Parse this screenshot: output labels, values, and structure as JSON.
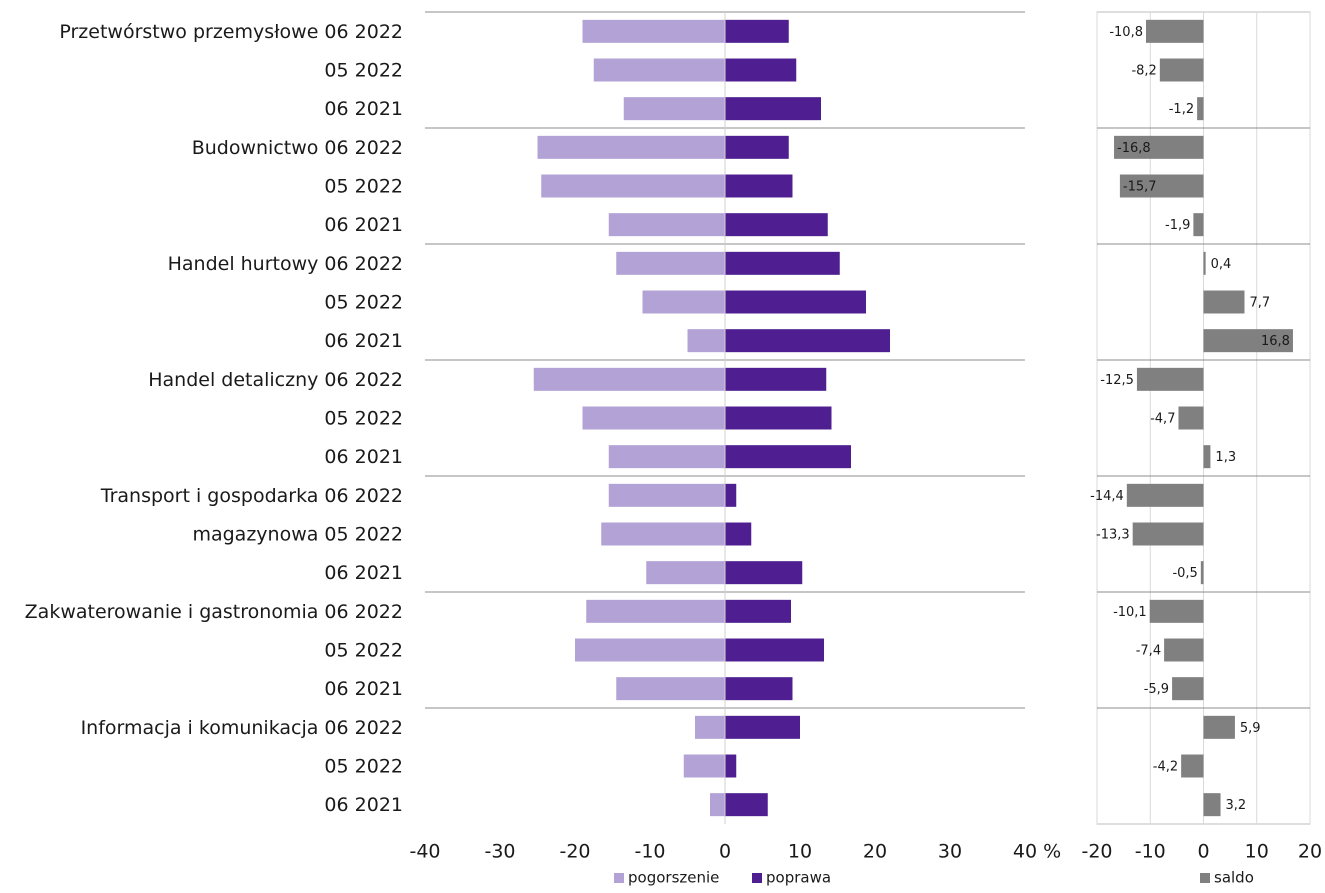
{
  "chart_data": [
    {
      "type": "bar",
      "orientation": "horizontal",
      "categories": [
        "Przetwórstwo przemysłowe 06 2022",
        "05 2022",
        "06 2021",
        "Budownictwo 06 2022",
        "05 2022",
        "06 2021",
        "Handel hurtowy 06 2022",
        "05 2022",
        "06 2021",
        "Handel detaliczny 06 2022",
        "05 2022",
        "06 2021",
        "Transport i gospodarka 06 2022",
        "magazynowa 05 2022",
        "06 2021",
        "Zakwaterowanie i gastronomia 06 2022",
        "05 2022",
        "06 2021",
        "Informacja i komunikacja 06 2022",
        "05 2022",
        "06 2021"
      ],
      "series": [
        {
          "name": "pogorszenie",
          "color": "#b3a2d6",
          "values": [
            -19,
            -17.5,
            -13.5,
            -25,
            -24.5,
            -15.5,
            -14.5,
            -11,
            -5,
            -25.5,
            -19,
            -15.5,
            -15.5,
            -16.5,
            -10.5,
            -18.5,
            -20,
            -14.5,
            -4,
            -5.5,
            -2
          ]
        },
        {
          "name": "poprawa",
          "color": "#4f1f91",
          "values": [
            8.5,
            9.5,
            12.8,
            8.5,
            9,
            13.7,
            15.3,
            18.8,
            22,
            13.5,
            14.2,
            16.8,
            1.5,
            3.5,
            10.3,
            8.8,
            13.2,
            9,
            10,
            1.5,
            5.7
          ]
        }
      ],
      "xlim": [
        -40,
        40
      ],
      "xticks": [
        "-40",
        "-30",
        "-20",
        "-10",
        "0",
        "10",
        "20",
        "30",
        "40 %"
      ],
      "group_separators_after": [
        3,
        6,
        9,
        12,
        15,
        18
      ],
      "legend": "bottom",
      "grid": false
    },
    {
      "type": "bar",
      "orientation": "horizontal",
      "series": [
        {
          "name": "saldo",
          "color": "#808080",
          "values": [
            -10.8,
            -8.2,
            -1.2,
            -16.8,
            -15.7,
            -1.9,
            0.4,
            7.7,
            16.8,
            -12.5,
            -4.7,
            1.3,
            -14.4,
            -13.3,
            -0.5,
            -10.1,
            -7.4,
            -5.9,
            5.9,
            -4.2,
            3.2
          ],
          "labels": [
            "-10,8",
            "-8,2",
            "-1,2",
            "-16,8",
            "-15,7",
            "-1,9",
            "0,4",
            "7,7",
            "16,8",
            "-12,5",
            "-4,7",
            "1,3",
            "-14,4",
            "-13,3",
            "-0,5",
            "-10,1",
            "-7,4",
            "-5,9",
            "5,9",
            "-4,2",
            "3,2"
          ]
        }
      ],
      "xlim": [
        -20,
        20
      ],
      "xticks": [
        "-20",
        "-10",
        "0",
        "10",
        "20"
      ],
      "legend": "bottom",
      "grid": true
    }
  ]
}
